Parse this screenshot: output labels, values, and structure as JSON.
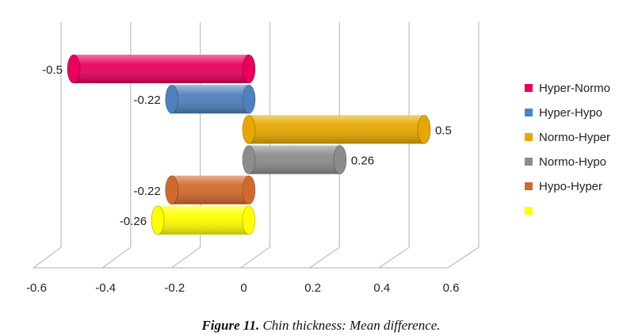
{
  "chart_data": {
    "type": "bar",
    "orientation": "horizontal",
    "style": "3d-cylinder",
    "categories": [
      "Hyper-Normo",
      "Hyper-Hypo",
      "Normo-Hyper",
      "Normo-Hypo",
      "Hypo-Hyper",
      ""
    ],
    "values": [
      -0.5,
      -0.22,
      0.5,
      0.26,
      -0.22,
      -0.26
    ],
    "data_labels": [
      "-0.5",
      "-0.22",
      "0.5",
      "0.26",
      "-0.22",
      "-0.26"
    ],
    "colors": [
      "#e8005c",
      "#4f81bd",
      "#e6a800",
      "#8c8c8c",
      "#d06a2c",
      "#ffff00"
    ],
    "xlim": [
      -0.6,
      0.6
    ],
    "x_ticks": [
      "-0.6",
      "-0.4",
      "-0.2",
      "0",
      "0.2",
      "0.4",
      "0.6"
    ],
    "grid": true,
    "legend_position": "right",
    "legend": [
      "Hyper-Normo",
      "Hyper-Hypo",
      "Normo-Hyper",
      "Normo-Hypo",
      "Hypo-Hyper",
      ""
    ]
  },
  "caption": {
    "label": "Figure 11.",
    "text": "Chin thickness: Mean difference."
  }
}
